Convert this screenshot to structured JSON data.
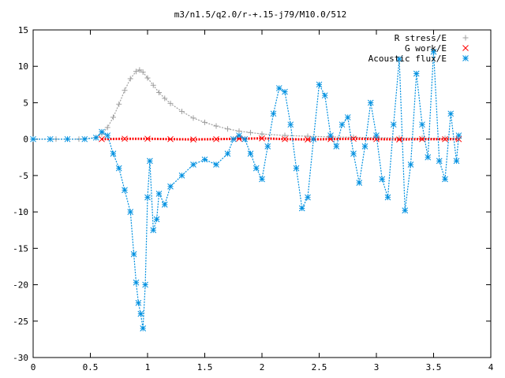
{
  "chart_data": {
    "type": "scatter",
    "title": "m3/n1.5/q2.0/r-+.15-j79/M10.0/512",
    "xlabel": "",
    "ylabel": "",
    "xlim": [
      0,
      4
    ],
    "ylim": [
      -30,
      15
    ],
    "x_ticks": [
      0,
      0.5,
      1,
      1.5,
      2,
      2.5,
      3,
      3.5,
      4
    ],
    "x_tick_labels": [
      "0",
      "0.5",
      "1",
      "1.5",
      "2",
      "2.5",
      "3",
      "3.5",
      "4"
    ],
    "y_ticks": [
      15,
      10,
      5,
      0,
      -5,
      -10,
      -15,
      -20,
      -25,
      -30
    ],
    "y_tick_labels": [
      "15",
      "10",
      "5",
      "0",
      "-5",
      "-10",
      "-15",
      "-20",
      "-25",
      "-30"
    ],
    "grid": false,
    "legend_position": "top-right",
    "series": [
      {
        "name": "R stress/E",
        "marker": "+",
        "color": "#a0a0a0",
        "x": [
          0.0,
          0.2,
          0.4,
          0.55,
          0.6,
          0.65,
          0.7,
          0.75,
          0.8,
          0.85,
          0.9,
          0.93,
          0.96,
          1.0,
          1.05,
          1.1,
          1.15,
          1.2,
          1.3,
          1.4,
          1.5,
          1.6,
          1.7,
          1.8,
          1.9,
          2.0,
          2.2,
          2.4,
          2.6,
          2.8,
          3.0,
          3.2,
          3.4,
          3.6,
          3.72
        ],
        "y": [
          0.0,
          0.0,
          0.0,
          0.2,
          0.7,
          1.6,
          3.0,
          4.8,
          6.7,
          8.3,
          9.3,
          9.5,
          9.2,
          8.4,
          7.4,
          6.4,
          5.6,
          4.9,
          3.8,
          2.9,
          2.3,
          1.8,
          1.4,
          1.1,
          0.9,
          0.7,
          0.5,
          0.4,
          0.3,
          0.25,
          0.2,
          0.15,
          0.12,
          0.1,
          0.1
        ]
      },
      {
        "name": "G work/E",
        "marker": "x",
        "color": "#ff0000",
        "x": [
          0.6,
          0.8,
          1.0,
          1.2,
          1.4,
          1.6,
          1.8,
          2.0,
          2.2,
          2.4,
          2.6,
          2.8,
          3.0,
          3.2,
          3.4,
          3.6,
          3.72
        ],
        "y": [
          0.0,
          0.05,
          0.05,
          0.0,
          -0.05,
          0.0,
          0.05,
          0.1,
          0.0,
          -0.05,
          0.0,
          0.05,
          0.0,
          -0.05,
          0.0,
          0.0,
          0.0
        ]
      },
      {
        "name": "Acoustic flux/E",
        "marker": "*",
        "color": "#0090e0",
        "x": [
          0.0,
          0.15,
          0.3,
          0.45,
          0.55,
          0.6,
          0.65,
          0.7,
          0.75,
          0.8,
          0.85,
          0.88,
          0.9,
          0.92,
          0.94,
          0.96,
          0.98,
          1.0,
          1.02,
          1.05,
          1.08,
          1.1,
          1.15,
          1.2,
          1.3,
          1.4,
          1.5,
          1.6,
          1.7,
          1.75,
          1.8,
          1.85,
          1.9,
          1.95,
          2.0,
          2.05,
          2.1,
          2.15,
          2.2,
          2.25,
          2.3,
          2.35,
          2.4,
          2.45,
          2.5,
          2.55,
          2.6,
          2.65,
          2.7,
          2.75,
          2.8,
          2.85,
          2.9,
          2.95,
          3.0,
          3.05,
          3.1,
          3.15,
          3.2,
          3.25,
          3.3,
          3.35,
          3.4,
          3.45,
          3.5,
          3.55,
          3.6,
          3.65,
          3.7,
          3.72
        ],
        "y": [
          0.0,
          0.0,
          0.0,
          0.0,
          0.2,
          1.0,
          0.5,
          -2.0,
          -4.0,
          -7.0,
          -10.0,
          -15.8,
          -19.7,
          -22.5,
          -24.0,
          -26.0,
          -20.0,
          -8.0,
          -3.0,
          -12.5,
          -11.0,
          -7.5,
          -9.0,
          -6.5,
          -5.0,
          -3.5,
          -2.8,
          -3.5,
          -2.0,
          0.0,
          0.5,
          0.0,
          -2.0,
          -4.0,
          -5.5,
          -1.0,
          3.5,
          7.0,
          6.5,
          2.0,
          -4.0,
          -9.5,
          -8.0,
          0.0,
          7.5,
          6.0,
          0.5,
          -1.0,
          2.0,
          3.0,
          -2.0,
          -6.0,
          -1.0,
          5.0,
          0.5,
          -5.5,
          -8.0,
          2.0,
          11.0,
          -9.8,
          -3.5,
          9.0,
          2.0,
          -2.5,
          12.0,
          -3.0,
          -5.5,
          3.5,
          -3.0,
          0.5
        ]
      }
    ]
  }
}
